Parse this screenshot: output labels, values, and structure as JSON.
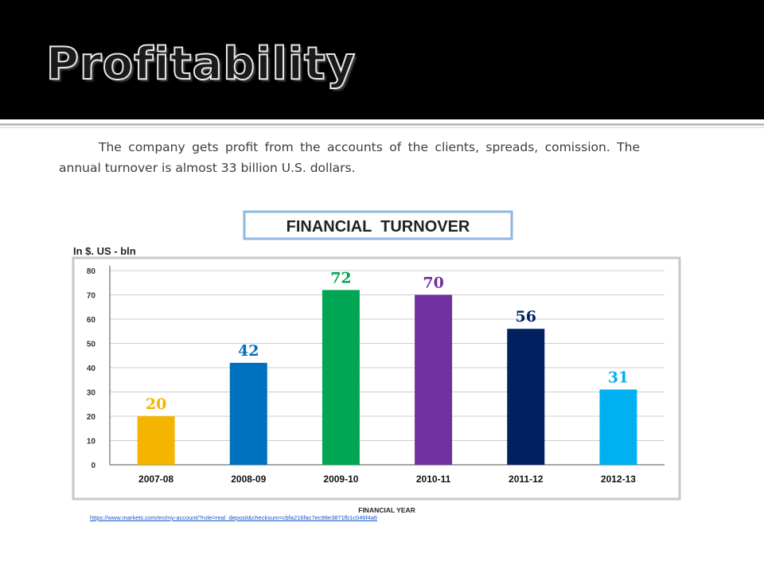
{
  "slide": {
    "title": "Profitability",
    "body": "The company gets profit from the accounts of the clients, spreads, comission. The annual  turnover is almost 33 billion U.S. dollars.",
    "source_link": "https://www.markets.com/en/my-account/?role=real_deposit&checksum=cbfa216fac7ec98e3871fb1c046f4a6"
  },
  "colors": {
    "header_bg": "#000000",
    "title_fill": "#1a1a1a",
    "title_outline": "#e8e8e8",
    "chart_border": "#c8c8c8",
    "gridline": "#cccccc",
    "title_box_border": "#8fb7e0"
  },
  "chart_data": {
    "type": "bar",
    "title": "FINANCIAL  TURNOVER",
    "ylabel": "In $. US - bln",
    "xlabel": "FINANCIAL YEAR",
    "categories": [
      "2007-08",
      "2008-09",
      "2009-10",
      "2010-11",
      "2011-12",
      "2012-13"
    ],
    "values": [
      20,
      42,
      72,
      70,
      56,
      31
    ],
    "data_labels": [
      "20",
      "42",
      "72",
      "70",
      "56",
      "31"
    ],
    "bar_colors": [
      "#f5b400",
      "#0070c0",
      "#00a651",
      "#7030a0",
      "#002060",
      "#00b0f0"
    ],
    "label_colors": [
      "#f5b400",
      "#0070c0",
      "#00a651",
      "#7030a0",
      "#002060",
      "#00b0f0"
    ],
    "yticks": [
      0,
      10,
      20,
      30,
      40,
      50,
      60,
      70,
      80
    ],
    "ytick_labels": [
      "0",
      "10",
      "20",
      "30",
      "40",
      "50",
      "60",
      "70",
      "80"
    ],
    "ylim": [
      0,
      80
    ],
    "grid": true,
    "legend": "none"
  }
}
